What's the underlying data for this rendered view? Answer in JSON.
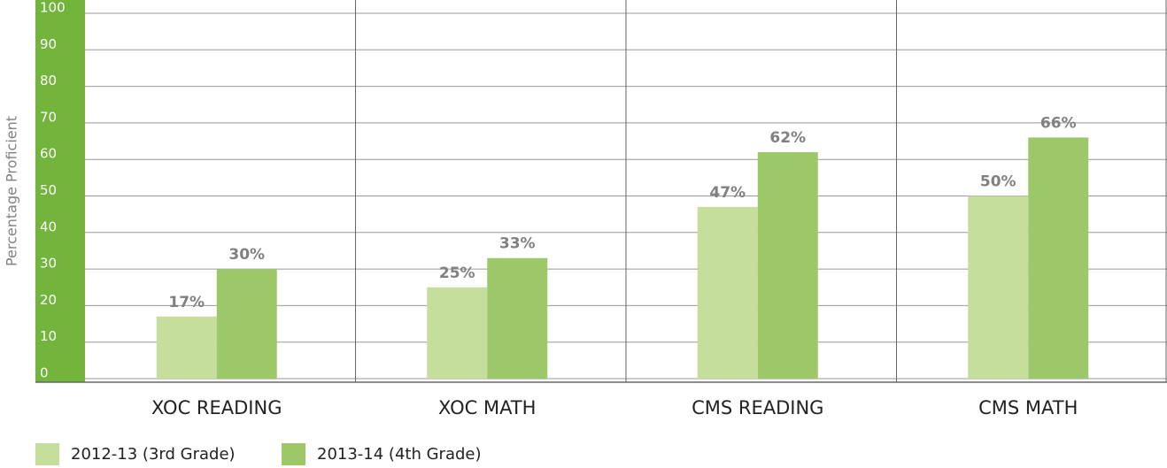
{
  "chart_data": {
    "type": "bar",
    "y_axis_label": "Percentage Proficient",
    "categories": [
      "XOC READING",
      "XOC MATH",
      "CMS READING",
      "CMS MATH"
    ],
    "series": [
      {
        "name": "2012-13 (3rd Grade)",
        "color": "#c6de9c",
        "values": [
          17,
          25,
          47,
          50
        ],
        "value_labels": [
          "17%",
          "25%",
          "47%",
          "50%"
        ]
      },
      {
        "name": "2013-14 (4th Grade)",
        "color": "#9dc86a",
        "values": [
          30,
          33,
          62,
          66
        ],
        "value_labels": [
          "30%",
          "33%",
          "62%",
          "66%"
        ]
      }
    ],
    "ylim": [
      0,
      100
    ],
    "yticks": [
      0,
      10,
      20,
      30,
      40,
      50,
      60,
      70,
      80,
      90,
      100
    ],
    "grid": true,
    "axis_color": "#72b43c"
  }
}
